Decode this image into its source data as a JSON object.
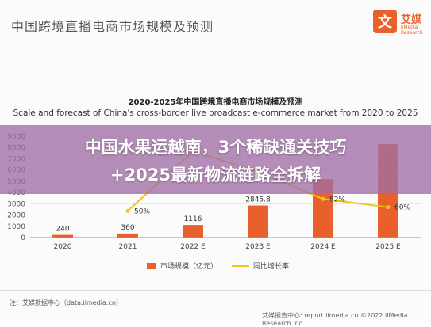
{
  "header": {
    "title": "中国跨境直播电商市场规模及预测",
    "logo_text": "艾媒",
    "logo_sub": "iiMedia Research"
  },
  "chart_data": {
    "type": "bar",
    "title": "2020-2025年中国跨境直播电商市场规模及预测",
    "subtitle": "Scale and forecast of China's cross-border live broadcast e-commerce market from 2020 to 2025",
    "categories": [
      "2020",
      "2021",
      "2022 E",
      "2023 E",
      "2024 E",
      "2025 E"
    ],
    "series": [
      {
        "name": "市场规模（亿元）",
        "type": "bar",
        "values": [
          240,
          360,
          1116,
          2845.8,
          5180,
          8287
        ],
        "labels": [
          "240",
          "360",
          "1116",
          "2845.8",
          "",
          ""
        ]
      },
      {
        "name": "同比增长率",
        "type": "line",
        "values": [
          null,
          50,
          210,
          155,
          82,
          60
        ],
        "labels": [
          "",
          "50%",
          "",
          "",
          "82%",
          "60%"
        ]
      }
    ],
    "ylim": [
      0,
      9000
    ],
    "yticks": [
      0,
      1000,
      2000,
      3000,
      4000,
      5000,
      6000,
      7000,
      8000,
      9000
    ],
    "colors": {
      "bar": "#e8612c",
      "line": "#f0c419"
    }
  },
  "overlay": {
    "line1": "中国水果运越南，3个稀缺通关技巧",
    "line2": "+2025最新物流链路全拆解"
  },
  "source": "注：艾媒数据中心（data.iimedia.cn）",
  "footer_right": "艾媒报告中心: report.iimedia.cn ©2022 iiMedia Research Inc"
}
